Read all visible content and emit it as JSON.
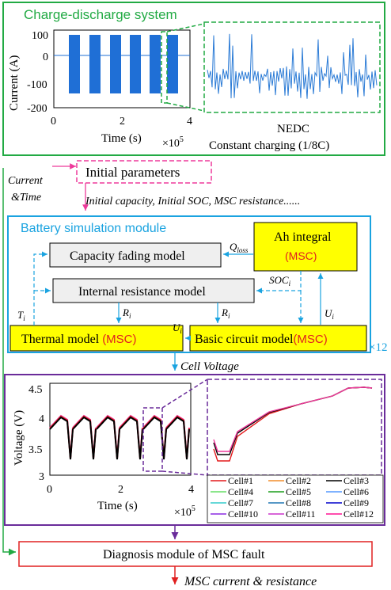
{
  "charge_system": {
    "title": "Charge-discharge system",
    "ylabel": "Current (A)",
    "xlabel": "Time (s)",
    "x_exponent": "×10",
    "x_exponent_power": "5",
    "y_ticks": [
      "100",
      "0",
      "-100",
      "-200"
    ],
    "x_ticks": [
      "0",
      "2",
      "4"
    ],
    "zoom_label_1": "NEDC",
    "zoom_label_2": "Constant charging (1/8C)"
  },
  "inputs": {
    "current_time_1": "Current",
    "current_time_2": "&Time",
    "initial_parameters": "Initial parameters",
    "initial_parameters_detail": "Initial capacity, Initial SOC, MSC resistance......"
  },
  "simulation": {
    "title": "Battery simulation module",
    "capacity_fading": "Capacity fading model",
    "ah_integral": "Ah integral",
    "msc": "(MSC)",
    "internal_resistance": "Internal resistance model",
    "thermal_model": "Thermal model ",
    "basic_circuit": "Basic circuit model",
    "q_loss": "Q",
    "q_loss_sub": "loss",
    "soc": "SOC",
    "soc_sub": "i",
    "u": "U",
    "u_sub": "i",
    "r": "R",
    "r_sub": "i",
    "t": "T",
    "t_sub": "i",
    "multiplier": "×12"
  },
  "cell_voltage": {
    "label": "Cell Voltage",
    "ylabel": "Voltage (V)",
    "xlabel": "Time (s)",
    "x_exponent": "×10",
    "x_exponent_power": "5",
    "y_ticks": [
      "4.5",
      "4",
      "3.5",
      "3"
    ],
    "x_ticks": [
      "0",
      "2",
      "4"
    ],
    "legend": [
      {
        "name": "Cell#1",
        "color": "#e41a1c"
      },
      {
        "name": "Cell#2",
        "color": "#f28e2b"
      },
      {
        "name": "Cell#3",
        "color": "#000000"
      },
      {
        "name": "Cell#4",
        "color": "#66dd66"
      },
      {
        "name": "Cell#5",
        "color": "#1b9e1b"
      },
      {
        "name": "Cell#6",
        "color": "#5599ff"
      },
      {
        "name": "Cell#7",
        "color": "#33cccc"
      },
      {
        "name": "Cell#8",
        "color": "#1f77b4"
      },
      {
        "name": "Cell#9",
        "color": "#0000cc"
      },
      {
        "name": "Cell#10",
        "color": "#8a2be2"
      },
      {
        "name": "Cell#11",
        "color": "#cc33cc"
      },
      {
        "name": "Cell#12",
        "color": "#ff1493"
      }
    ]
  },
  "diagnosis": {
    "label": "Diagnosis module of MSC fault",
    "output": "MSC current & resistance"
  },
  "colors": {
    "green": "#22aa44",
    "cyan": "#1aa3e0",
    "purple": "#6a2c9a",
    "pink": "#ee3a9b",
    "red": "#e02020",
    "yellow": "#ffff00",
    "blue_signal": "#1f6fd6",
    "gray_box": "#efefef"
  }
}
